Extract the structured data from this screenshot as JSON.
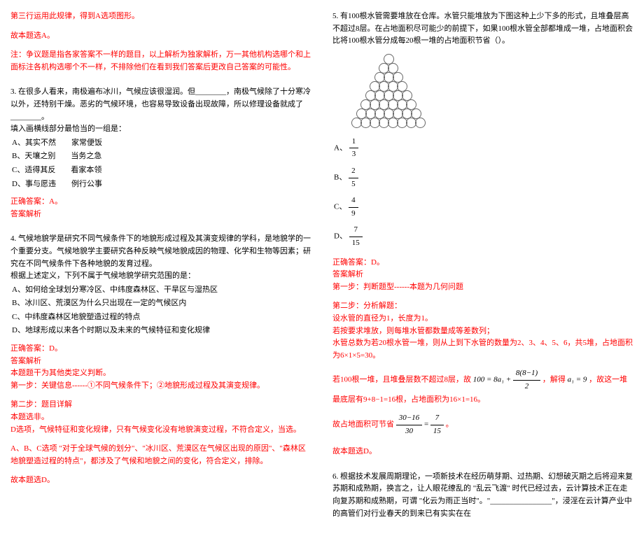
{
  "left": {
    "line1": "第三行运用此规律，得到A选项图形。",
    "line2": "故本题选A。",
    "note": "注：争议题是指各家答案不一样的题目，以上解析为独家解析，万一其他机构选哪个和上面标注各机构选哪个不一样，不排除他们在看到我们答案后更改自己答案的可能性。",
    "q3": {
      "stem": "3. 在很多人看来，南极遍布冰川，气候应该很湿润。但________，南极气候除了十分寒冷以外，还特别干燥。恶劣的气候环境，也容易导致设备出现故障，所以修理设备就成了________。",
      "prompt": "填入画横线部分最恰当的一组是：",
      "optA": "A、其实不然　　家常便饭",
      "optB": "B、天壤之别　　当务之急",
      "optC": "C、适得其反　　看家本领",
      "optD": "D、事与愿违　　例行公事",
      "ans": "正确答案：A。",
      "ansLabel": "答案解析"
    },
    "q4": {
      "stem": "4. 气候地貌学是研究不同气候条件下的地貌形成过程及其演变规律的学科，是地貌学的一个重要分支。气候地貌学主要研究各种反映气候地貌成因的物理、化学和生物等因素；研究在不同气候条件下各种地貌的发育过程。",
      "prompt": "根据上述定义，下列不属于气候地貌学研究范围的是：",
      "optA": "A、如何给全球划分寒冷区、中纬度森林区、干旱区与湿热区",
      "optB": "B、冰川区、荒漠区为什么只出现在一定的气候区内",
      "optC": "C、中纬度森林区地貌塑造过程的特点",
      "optD": "D、地球形成以来各个时期以及未来的气候特征和变化规律",
      "ans": "正确答案：D。",
      "ansLabel": "答案解析",
      "analysis1": "本题题干为其他类定义判断。",
      "analysis2": "第一步：关键信息------①不同气候条件下；②地貌形成过程及其演变规律。",
      "step2Label": "第二步：题目详解",
      "step2a": "本题选非。",
      "step2b": "D选项，气候特征和变化规律，只有气候变化没有地貌演变过程，不符合定义，当选。",
      "step2c": "A、B、C选项 \"对于全球气候的划分\"、\"冰川区、荒漠区在气候区出现的原因\"、\"森林区地貌塑造过程的特点\"，都涉及了气候和地貌之间的变化，符合定义，排除。",
      "step2d": "故本题选D。"
    }
  },
  "right": {
    "q5": {
      "stem": "5. 有100根水管需要堆放在仓库。水管只能堆放为下图这种上少下多的形式，且堆叠层高不超过8层。在占地面积尽可能少的前提下，如果100根水管全部都堆成一堆，占地面积会比将100根水管分成每20根一堆的占地面积节省（）。",
      "pyramid_rows": [
        1,
        2,
        3,
        4,
        5,
        6,
        7,
        8
      ],
      "optA_label": "A、",
      "optA_num": "1",
      "optA_den": "3",
      "optB_label": "B、",
      "optB_num": "2",
      "optB_den": "5",
      "optC_label": "C、",
      "optC_num": "4",
      "optC_den": "9",
      "optD_label": "D、",
      "optD_num": "7",
      "optD_den": "15",
      "ans": "正确答案：D。",
      "ansLabel": "答案解析",
      "step1": "第一步：判断题型------本题为几何问题",
      "step2Label": "第二步：分析解题：",
      "step2a": "设水管的直径为1，长度为1。",
      "step2b": "若按要求堆放，则每堆水管都数量成等差数列；",
      "step2c": "水管总数为若20根水管一堆，则从上到下水管的数量为2、3、4、5、6，共5堆，占地面积为6×1×5=30。",
      "formula1_pre": "若100根一堆，且堆叠层数不超过8层，故",
      "formula1_mid": "100 = 8a₁ +",
      "formula1_frac_num": "8(8−1)",
      "formula1_frac_den": "2",
      "formula1_solve": "，解得",
      "formula1_a1": "a₁ = 9",
      "formula1_post": "，故这一堆最底层有9+8−1=16根，占地面积为16×1=16。",
      "formula2_pre": "故占地面积可节省",
      "formula2_num1": "30−16",
      "formula2_den1": "30",
      "formula2_eq": "=",
      "formula2_num2": "7",
      "formula2_den2": "15",
      "formula2_post": "。",
      "end": "故本题选D。"
    },
    "q6": {
      "stem": "6. 根据技术发展周期理论，一项新技术在经历萌芽期、过热期、幻想破灭期之后将迎来复苏期和成熟期，换言之，让人眼花缭乱的 \"乱云飞渡\" 时代已经过去，云计算技术正在走向复苏期和成熟期，可谓 \"化云为雨正当时\"。\"________________\"，浸淫在云计算产业中的高管们对行业春天的到来已有实实在在"
    }
  }
}
